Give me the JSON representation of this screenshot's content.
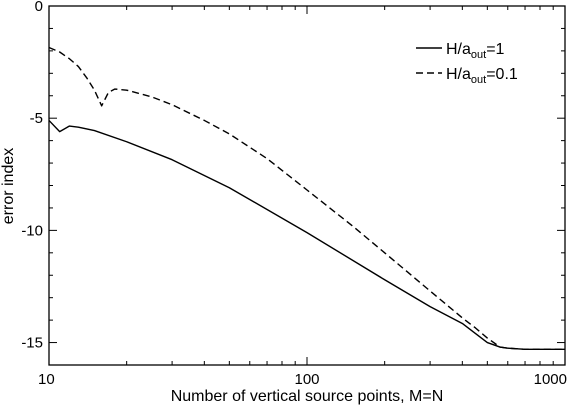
{
  "chart_data": {
    "type": "line",
    "xlabel": "Number of vertical source points, M=N",
    "ylabel": "error index",
    "x_scale": "log",
    "xlim": [
      10,
      1000
    ],
    "ylim": [
      -16,
      0
    ],
    "x_ticks": [
      10,
      100,
      1000
    ],
    "x_tick_labels": [
      "10",
      "100",
      "1000"
    ],
    "y_ticks": [
      0,
      -5,
      -10,
      -15
    ],
    "y_tick_labels": [
      "0",
      "-5",
      "-10",
      "-15"
    ],
    "grid": false,
    "legend_position": "top-right",
    "series": [
      {
        "legend_main": "H/a",
        "legend_sub": "out",
        "legend_tail": "=1",
        "style": "solid",
        "x": [
          10,
          11,
          12,
          13,
          15,
          20,
          30,
          50,
          100,
          200,
          300,
          400,
          450,
          500,
          560,
          600,
          700,
          800,
          900,
          1000
        ],
        "y": [
          -5.1,
          -5.6,
          -5.35,
          -5.4,
          -5.55,
          -6.05,
          -6.85,
          -8.1,
          -10.1,
          -12.2,
          -13.4,
          -14.15,
          -14.6,
          -15.0,
          -15.2,
          -15.25,
          -15.3,
          -15.3,
          -15.3,
          -15.3
        ]
      },
      {
        "legend_main": "H/a",
        "legend_sub": "out",
        "legend_tail": "=0.1",
        "style": "dashed",
        "x": [
          10,
          11,
          12,
          13,
          14,
          15,
          16,
          17,
          18,
          20,
          25,
          30,
          40,
          50,
          70,
          100,
          150,
          200,
          300,
          400,
          450,
          500,
          560,
          600,
          700,
          800,
          900,
          1000
        ],
        "y": [
          -1.85,
          -2.05,
          -2.35,
          -2.7,
          -3.2,
          -3.75,
          -4.45,
          -3.85,
          -3.7,
          -3.75,
          -4.05,
          -4.4,
          -5.1,
          -5.7,
          -6.8,
          -8.2,
          -9.8,
          -11.0,
          -12.7,
          -13.9,
          -14.35,
          -14.8,
          -15.2,
          -15.25,
          -15.3,
          -15.3,
          -15.3,
          -15.3
        ]
      }
    ]
  }
}
